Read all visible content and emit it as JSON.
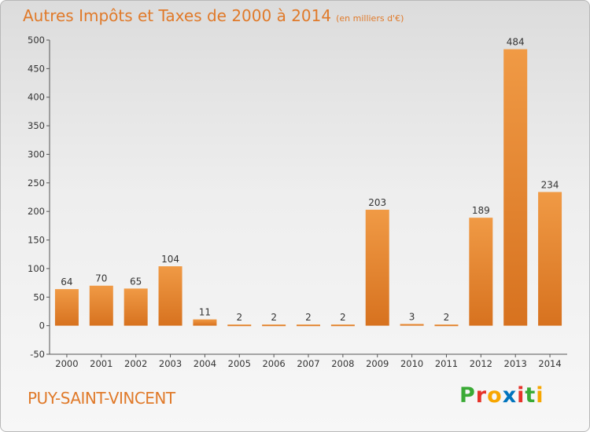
{
  "header": {
    "title": "Autres Impôts et Taxes de 2000 à 2014",
    "subtitle": "(en milliers d'€)"
  },
  "footer": {
    "commune": "PUY-SAINT-VINCENT",
    "logo_letters": [
      "P",
      "r",
      "o",
      "x",
      "i",
      "t",
      "i"
    ],
    "logo_colors": [
      "#3aaa35",
      "#e6332a",
      "#f7a600",
      "#0074bd",
      "#e6332a",
      "#3aaa35",
      "#f7a600"
    ]
  },
  "chart_data": {
    "type": "bar",
    "title": "Autres Impôts et Taxes de 2000 à 2014",
    "subtitle": "(en milliers d'€)",
    "categories": [
      "2000",
      "2001",
      "2002",
      "2003",
      "2004",
      "2005",
      "2006",
      "2007",
      "2008",
      "2009",
      "2010",
      "2011",
      "2012",
      "2013",
      "2014"
    ],
    "values": [
      64,
      70,
      65,
      104,
      11,
      2,
      2,
      2,
      2,
      203,
      3,
      2,
      189,
      484,
      234
    ],
    "ylim": [
      -50,
      500
    ],
    "yticks": [
      -50,
      0,
      50,
      100,
      150,
      200,
      250,
      300,
      350,
      400,
      450,
      500
    ],
    "grid": false,
    "bar_color": "#f09a45",
    "bar_color_dark": "#d7721f"
  }
}
